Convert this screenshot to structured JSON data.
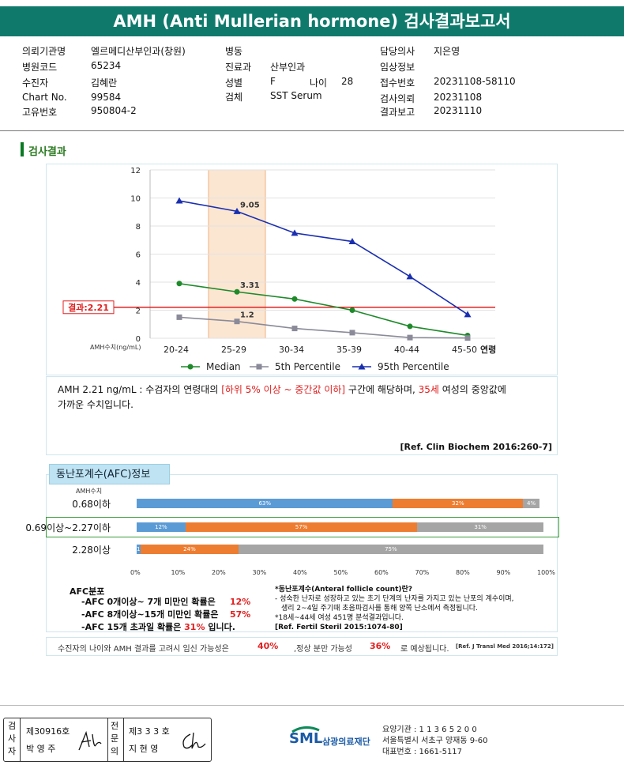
{
  "title": "AMH (Anti Mullerian hormone) 검사결과보고서",
  "info": {
    "hospital_label": "의뢰기관명",
    "hospital": "엘르메디산부인과(창원)",
    "code_label": "병원코드",
    "code": "65234",
    "patient_label": "수진자",
    "patient": "김혜란",
    "chart_label": "Chart No.",
    "chart": "99584",
    "unique_label": "고유번호",
    "unique": "950804-2",
    "ward_label": "병동",
    "ward": "",
    "dept_label": "진료과",
    "dept": "산부인과",
    "sex_label": "성별",
    "sex": "F",
    "age_label": "나이",
    "age": "28",
    "specimen_label": "검체",
    "specimen": "SST Serum",
    "doctor_label": "담당의사",
    "doctor": "지은영",
    "clinical_label": "임상정보",
    "clinical": "",
    "receipt_label": "접수번호",
    "receipt": "20231108-58110",
    "request_label": "검사의뢰",
    "request": "20231108",
    "report_label": "결과보고",
    "report": "20231110"
  },
  "section_title": "검사결과",
  "chart_data": [
    {
      "type": "line",
      "categories": [
        "20-24",
        "25-29",
        "30-34",
        "35-39",
        "40-44",
        "45-50"
      ],
      "x_suffix_label": "연령",
      "ylabel": "AMH수치(ng/mL)",
      "ylim": [
        0,
        12
      ],
      "yticks": [
        0,
        2,
        4,
        6,
        8,
        10,
        12
      ],
      "grid": true,
      "series": [
        {
          "name": "Median",
          "values": [
            3.9,
            3.31,
            2.8,
            2.0,
            0.85,
            0.2
          ],
          "color": "#1e8a2a",
          "marker": "circle"
        },
        {
          "name": "5th Percentile",
          "values": [
            1.5,
            1.2,
            0.7,
            0.4,
            0.05,
            0.02
          ],
          "color": "#8a8a99",
          "marker": "square"
        },
        {
          "name": "95th Percentile",
          "values": [
            9.8,
            9.05,
            7.5,
            6.9,
            4.4,
            1.7
          ],
          "color": "#1a2fb0",
          "marker": "triangle"
        }
      ],
      "point_labels": [
        {
          "series": 2,
          "index": 1,
          "text": "9.05"
        },
        {
          "series": 0,
          "index": 1,
          "text": "3.31"
        },
        {
          "series": 1,
          "index": 1,
          "text": "1.2"
        }
      ],
      "highlight_category": "25-29",
      "result_line": {
        "value": 2.21,
        "label": "결과:2.21",
        "color": "#e02020"
      },
      "legend_position": "bottom"
    },
    {
      "type": "bar",
      "orientation": "horizontal-stacked",
      "ylabel": "AMH수치",
      "categories": [
        "0.68이하",
        "0.69이상~2.27이하",
        "2.28이상"
      ],
      "series": [
        {
          "values": [
            63,
            12,
            1
          ],
          "color": "#5b9bd5"
        },
        {
          "values": [
            32,
            57,
            24
          ],
          "color": "#ed7d31"
        },
        {
          "values": [
            4,
            31,
            75
          ],
          "color": "#a5a5a5"
        }
      ],
      "labels": [
        [
          "63%",
          "32%",
          "4%"
        ],
        [
          "12%",
          "57%",
          "31%"
        ],
        [
          "1%",
          "24%",
          "75%"
        ]
      ],
      "xticks": [
        "0%",
        "10%",
        "20%",
        "30%",
        "40%",
        "50%",
        "60%",
        "70%",
        "80%",
        "90%",
        "100%"
      ],
      "highlight_category": "0.69이상~2.27이하"
    }
  ],
  "result_note": {
    "p1": "AMH  2.21 ng/mL : 수검자의 연령대의 ",
    "r1": "[하위 5% 이상 ~ 중간값 이하]",
    "p2": " 구간에 해당하며, ",
    "r2": "35세",
    "p3": " 여성의 중앙값에",
    "p4": "가까운 수치입니다.",
    "ref": "[Ref. Clin Biochem 2016:260-7]"
  },
  "afc": {
    "tab": "동난포계수(AFC)정보",
    "dist_title": "AFC분포",
    "lines": [
      {
        "pre": "-AFC  0개이상~ 7개 미만인 확률은",
        "val": "12%",
        "post": ""
      },
      {
        "pre": "-AFC  8개이상~15개 미만인 확률은",
        "val": "57%",
        "post": ""
      },
      {
        "pre": "-AFC  15개 초과일 확률은",
        "val": "31%",
        "post": "입니다."
      }
    ],
    "desc1": "*동난포계수(Anteral follicle count)란?",
    "desc2": "- 성숙한 난자로 성장하고 있는 초기 단계의 난자를 가지고 있는 난포의 계수이며,",
    "desc3": "생리 2~4일 주기때 초음파검사를 통해 양쪽 난소에서 측정됩니다.",
    "desc4": "*18세~44세 여성 451명 분석결과입니다.",
    "desc5": "[Ref. Fertil Steril 2015:1074-80]"
  },
  "possibility": {
    "p1": "수진자의 나이와 AMH 결과를 고려시 임신 가능성은",
    "v1": "40%",
    "p2": ",정상 분만 가능성",
    "v2": "36%",
    "p3": "로 예상됩니다.",
    "ref": "[Ref. J Transl Med 2016;14:172]"
  },
  "footer": {
    "role1": "검사자",
    "no1": "제30916호",
    "name1": "박 영 주",
    "role2": "전문의",
    "no2": "제3 3 3 호",
    "name2": "지 현 영",
    "org_short": "SML",
    "org_name": "삼광의료재단",
    "org_code": "요양기관 : 1 1 3 6 5 2 0 0",
    "address": "서울특별시 서초구 양재동 9-60",
    "phone": "대표번호 : 1661-5117"
  }
}
